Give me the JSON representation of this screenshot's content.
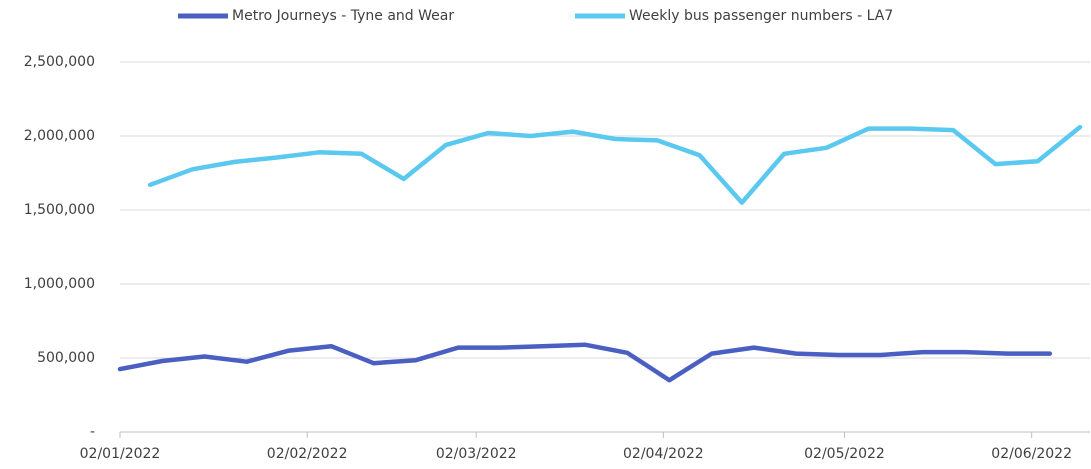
{
  "chart_data": {
    "type": "line",
    "series": [
      {
        "name": "Metro Journeys - Tyne and Wear",
        "color": "#4a5fc1",
        "x": [
          "2022-01-02",
          "2022-01-09",
          "2022-01-16",
          "2022-01-23",
          "2022-01-30",
          "2022-02-06",
          "2022-02-13",
          "2022-02-20",
          "2022-02-27",
          "2022-03-06",
          "2022-03-13",
          "2022-03-20",
          "2022-03-27",
          "2022-04-03",
          "2022-04-10",
          "2022-04-17",
          "2022-04-24",
          "2022-05-01",
          "2022-05-08",
          "2022-05-15",
          "2022-05-22",
          "2022-05-29",
          "2022-06-05"
        ],
        "values": [
          425000,
          480000,
          510000,
          475000,
          550000,
          580000,
          465000,
          485000,
          570000,
          570000,
          580000,
          590000,
          535000,
          350000,
          530000,
          570000,
          530000,
          520000,
          520000,
          540000,
          540000,
          530000,
          530000
        ]
      },
      {
        "name": "Weekly bus passenger numbers - LA7",
        "color": "#5bc8ef",
        "x": [
          "2022-01-07",
          "2022-01-14",
          "2022-01-21",
          "2022-01-28",
          "2022-02-04",
          "2022-02-11",
          "2022-02-18",
          "2022-02-25",
          "2022-03-04",
          "2022-03-11",
          "2022-03-18",
          "2022-03-25",
          "2022-04-01",
          "2022-04-08",
          "2022-04-15",
          "2022-04-22",
          "2022-04-29",
          "2022-05-06",
          "2022-05-13",
          "2022-05-20",
          "2022-05-27",
          "2022-06-03",
          "2022-06-10"
        ],
        "values": [
          1670000,
          1775000,
          1825000,
          1855000,
          1890000,
          1880000,
          1710000,
          1940000,
          2020000,
          2000000,
          2030000,
          1980000,
          1970000,
          1870000,
          1550000,
          1880000,
          1920000,
          2050000,
          2050000,
          2040000,
          1810000,
          1830000,
          2060000
        ]
      }
    ],
    "xlim": [
      "2022-01-02",
      "2022-06-11"
    ],
    "xticks": [
      {
        "value": "2022-01-02",
        "label": "02/01/2022"
      },
      {
        "value": "2022-02-02",
        "label": "02/02/2022"
      },
      {
        "value": "2022-03-02",
        "label": "02/03/2022"
      },
      {
        "value": "2022-04-02",
        "label": "02/04/2022"
      },
      {
        "value": "2022-05-02",
        "label": "02/05/2022"
      },
      {
        "value": "2022-06-02",
        "label": "02/06/2022"
      }
    ],
    "ylim": [
      0,
      2500000
    ],
    "yticks": [
      {
        "value": 0,
        "label": "-"
      },
      {
        "value": 500000,
        "label": "500,000"
      },
      {
        "value": 1000000,
        "label": "1,000,000"
      },
      {
        "value": 1500000,
        "label": "1,500,000"
      },
      {
        "value": 2000000,
        "label": "2,000,000"
      },
      {
        "value": 2500000,
        "label": "2,500,000"
      }
    ],
    "grid": true,
    "legend": "top"
  }
}
